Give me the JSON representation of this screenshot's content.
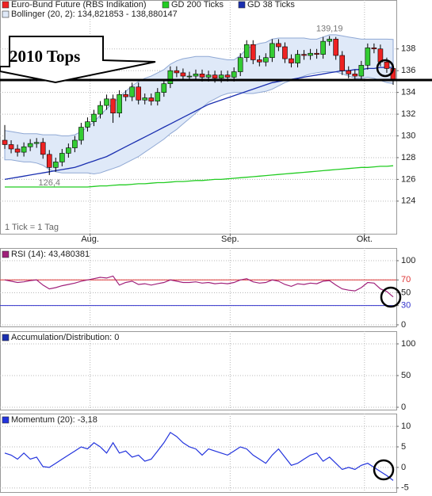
{
  "chart_data": [
    {
      "type": "candlestick",
      "name": "Euro-Bund Future (RBS Indikation)",
      "up_color": "#33cc33",
      "down_color": "#ee2222",
      "open": [
        129.6,
        129.2,
        128.8,
        128.5,
        129,
        129.3,
        129.4,
        128.3,
        127.1,
        127.6,
        128.4,
        128.9,
        129.6,
        130.8,
        131.3,
        132,
        132.8,
        133.4,
        132.1,
        133.8,
        133.6,
        134.5,
        133.3,
        133.5,
        133.2,
        134,
        134.8,
        136,
        135.8,
        135.5,
        135.5,
        135.7,
        135.4,
        135.6,
        135.3,
        135.6,
        135.4,
        135.9,
        137.2,
        138.4,
        137,
        136.8,
        137.2,
        138.5,
        138.2,
        137.1,
        136.7,
        137.5,
        137.4,
        137.6,
        137.5,
        138.7,
        138.9,
        137.4,
        136,
        135.7,
        135.5,
        136.5,
        138.1,
        138,
        136.8,
        136.2
      ],
      "high": [
        131,
        129.6,
        129.2,
        129.4,
        129.7,
        129.8,
        129.8,
        128.7,
        128,
        128.8,
        129.3,
        130,
        131.2,
        131.7,
        132.4,
        133.2,
        133.8,
        133.8,
        134.2,
        134.2,
        134.9,
        134.9,
        133.9,
        133.9,
        134.4,
        135.2,
        136.4,
        136.4,
        136.2,
        135.9,
        136.1,
        136.1,
        136,
        136,
        136,
        136,
        136.3,
        137.6,
        138.8,
        138.8,
        137.4,
        137.6,
        138.9,
        138.9,
        138.6,
        137.5,
        137.9,
        137.9,
        138,
        138,
        139.1,
        139.19,
        139.1,
        137.8,
        136.4,
        136.1,
        136.9,
        138.5,
        138.5,
        138.4,
        137.2,
        136.6
      ],
      "low": [
        128.8,
        128.4,
        128.1,
        128.1,
        128.6,
        128.9,
        127.9,
        126.4,
        126.7,
        127.2,
        128,
        128.5,
        129.2,
        130.4,
        130.9,
        131.6,
        132.4,
        131.2,
        131.7,
        133.2,
        133.2,
        132.9,
        132.9,
        132.8,
        132.8,
        133.6,
        134.4,
        135.4,
        135.1,
        135.1,
        135.1,
        135,
        135,
        134.9,
        134.9,
        135,
        135,
        135.5,
        136.8,
        136.6,
        136.4,
        136.4,
        136.8,
        137.8,
        136.7,
        136.3,
        136.3,
        137,
        137,
        137.1,
        137.1,
        138.3,
        137,
        135.6,
        135.3,
        135.1,
        135.1,
        136.1,
        137.6,
        136.4,
        135.8,
        134.7
      ],
      "close": [
        129.2,
        128.8,
        128.5,
        129,
        129.3,
        129.4,
        128.3,
        127.1,
        127.6,
        128.4,
        128.9,
        129.6,
        130.8,
        131.3,
        132,
        132.8,
        133.4,
        132.1,
        133.8,
        133.6,
        134.5,
        133.3,
        133.5,
        133.2,
        134,
        134.8,
        136,
        135.8,
        135.5,
        135.5,
        135.7,
        135.4,
        135.6,
        135.3,
        135.6,
        135.4,
        135.9,
        137.2,
        138.4,
        137,
        136.8,
        137.2,
        138.5,
        138.2,
        137.1,
        136.7,
        137.5,
        137.4,
        137.6,
        137.5,
        138.7,
        138.9,
        137.4,
        136,
        135.7,
        135.5,
        136.5,
        138.1,
        138,
        136.8,
        136.2,
        135.1
      ],
      "series": [
        {
          "name": "GD 200 Ticks",
          "color": "#22cc22",
          "values": [
            125.3,
            125.3,
            125.3,
            125.3,
            125.3,
            125.3,
            125.3,
            125.3,
            125.3,
            125.3,
            125.3,
            125.3,
            125.3,
            125.3,
            125.35,
            125.4,
            125.4,
            125.45,
            125.5,
            125.5,
            125.55,
            125.6,
            125.6,
            125.65,
            125.7,
            125.7,
            125.75,
            125.8,
            125.8,
            125.85,
            125.9,
            125.9,
            125.95,
            126,
            126,
            126.05,
            126.1,
            126.15,
            126.2,
            126.25,
            126.3,
            126.35,
            126.4,
            126.45,
            126.5,
            126.55,
            126.6,
            126.65,
            126.7,
            126.75,
            126.8,
            126.85,
            126.9,
            126.95,
            127,
            127.05,
            127.1,
            127.1,
            127.15,
            127.2,
            127.2,
            127.25
          ]
        },
        {
          "name": "GD 38 Ticks",
          "color": "#1a2fb0",
          "values": [
            126,
            126.1,
            126.2,
            126.3,
            126.4,
            126.5,
            126.6,
            126.7,
            126.8,
            126.9,
            127,
            127.1,
            127.3,
            127.5,
            127.7,
            127.9,
            128.1,
            128.4,
            128.7,
            129,
            129.3,
            129.6,
            129.9,
            130.2,
            130.5,
            130.8,
            131.1,
            131.4,
            131.7,
            132,
            132.3,
            132.6,
            132.9,
            133.1,
            133.3,
            133.5,
            133.7,
            133.9,
            134.1,
            134.3,
            134.5,
            134.7,
            134.9,
            135,
            135.1,
            135.2,
            135.3,
            135.4,
            135.5,
            135.6,
            135.7,
            135.8,
            135.9,
            136,
            136,
            136.1,
            136.1,
            136.2,
            136.2,
            136.3,
            136.3,
            136.3
          ]
        }
      ],
      "band": {
        "name": "Bollinger (20, 2): 134,821853 - 138,880147",
        "color": "#8fa8d4",
        "fill": "#dfe9f8",
        "upper": [
          130.5,
          130.4,
          130.3,
          130.2,
          130.2,
          130.2,
          130.1,
          130.1,
          130.1,
          130,
          130,
          130.1,
          130.4,
          130.8,
          131.3,
          131.9,
          132.5,
          133,
          133.6,
          134.1,
          134.6,
          135,
          135.3,
          135.5,
          135.8,
          136.1,
          136.6,
          136.9,
          137.1,
          137.2,
          137.3,
          137.3,
          137.3,
          137.2,
          137.1,
          137,
          137,
          137.4,
          138,
          138.3,
          138.5,
          138.6,
          138.9,
          139,
          139,
          139,
          139,
          139,
          138.9,
          138.9,
          139.1,
          139.3,
          139.3,
          139.2,
          139.1,
          139,
          138.9,
          138.9,
          138.9,
          138.9,
          138.9,
          138.88
        ],
        "lower": [
          127.8,
          127.8,
          127.7,
          127.6,
          127.6,
          127.5,
          127.3,
          126.9,
          126.7,
          126.6,
          126.6,
          126.6,
          126.6,
          126.6,
          126.5,
          126.6,
          126.8,
          127,
          127.2,
          127.5,
          127.8,
          128.1,
          128.5,
          128.9,
          129.3,
          129.7,
          130.2,
          130.6,
          131.1,
          131.6,
          132.1,
          132.6,
          133.1,
          133.4,
          133.7,
          133.9,
          134,
          134,
          133.9,
          133.9,
          134,
          134.1,
          134.3,
          134.6,
          134.9,
          135.1,
          135.3,
          135.5,
          135.7,
          135.8,
          135.9,
          135.9,
          135.9,
          135.7,
          135.5,
          135.3,
          135.3,
          135.4,
          135.3,
          135.1,
          134.9,
          134.82
        ]
      },
      "low_label": "126,4",
      "high_label": "139,19",
      "note": "1 Tick = 1 Tag",
      "callout": "2010 Tops",
      "xlim": [
        -0.75,
        61.5
      ],
      "xticks": [
        {
          "value": 13.4,
          "label": "Aug."
        },
        {
          "value": 35.4,
          "label": "Sep."
        },
        {
          "value": 56.5,
          "label": "Okt."
        }
      ],
      "ylim": [
        121,
        142.5
      ],
      "yticks": [
        124,
        126,
        128,
        130,
        132,
        134,
        136,
        138
      ],
      "grid": true
    },
    {
      "type": "line",
      "series": [
        {
          "name": "RSI (14): 43,480381",
          "color": "#a0207a",
          "values": [
            70,
            68,
            66,
            67,
            69,
            70,
            62,
            56,
            58,
            61,
            63,
            65,
            68,
            70,
            72,
            74,
            73,
            76,
            62,
            66,
            68,
            63,
            64,
            62,
            64,
            66,
            70,
            68,
            66,
            66,
            67,
            65,
            66,
            64,
            65,
            64,
            66,
            70,
            72,
            67,
            65,
            66,
            70,
            68,
            63,
            60,
            64,
            63,
            65,
            64,
            68,
            69,
            62,
            56,
            54,
            53,
            58,
            66,
            65,
            56,
            52,
            43.5
          ]
        }
      ],
      "ref_lines": [
        {
          "value": 70,
          "color": "#dd3333"
        },
        {
          "value": 30,
          "color": "#3333cc"
        }
      ],
      "ylim": [
        -2.5,
        119.75
      ],
      "yticks": [
        0,
        30,
        50,
        70,
        100
      ],
      "grid": true
    },
    {
      "type": "line",
      "series": [
        {
          "name": "Accumulation/Distribution: 0",
          "color": "#1a2fb0",
          "values": []
        }
      ],
      "ylim": [
        -3.75,
        120
      ],
      "yticks": [
        0,
        50,
        100
      ],
      "grid": true
    },
    {
      "type": "line",
      "series": [
        {
          "name": "Momentum (20): -3,18",
          "color": "#2233dd",
          "values": [
            3.5,
            3,
            2,
            3.5,
            2,
            2.5,
            0.2,
            0,
            1,
            2,
            3,
            4,
            5,
            4.5,
            6,
            5,
            3.5,
            6,
            3.5,
            4,
            2.5,
            3,
            1.5,
            2,
            4,
            6,
            8.5,
            7.5,
            6,
            5,
            4.5,
            3,
            4.5,
            4,
            3.5,
            3,
            4,
            5,
            4.5,
            3,
            2,
            1,
            3,
            4.5,
            2.5,
            0.5,
            1,
            2,
            3,
            3.5,
            1.5,
            2.5,
            1,
            -0.5,
            0,
            -0.5,
            0.5,
            1,
            0,
            -1,
            -2,
            -3.18
          ]
        }
      ],
      "ylim": [
        -6,
        13.1
      ],
      "yticks": [
        -5,
        0,
        5,
        10
      ],
      "grid": true
    }
  ]
}
